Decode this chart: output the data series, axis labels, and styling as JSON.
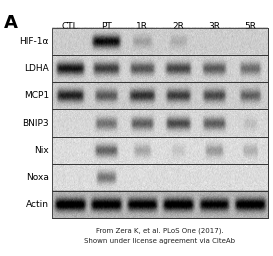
{
  "panel_label": "A",
  "col_labels": [
    "CTL",
    "PT",
    "1R",
    "2R",
    "3R",
    "5R"
  ],
  "row_labels": [
    "HIF-1α",
    "LDHA",
    "MCP1",
    "BNIP3",
    "Nix",
    "Noxa",
    "Actin"
  ],
  "caption_line1": "From Zera K, et al. PLoS One (2017).",
  "caption_line2": "Shown under license agreement via CiteAb",
  "fig_bg": "#ffffff",
  "blot_bg": 0.82,
  "row_bg": [
    0.8,
    0.82,
    0.8,
    0.84,
    0.86,
    0.86,
    0.72
  ],
  "bands": {
    "HIF-1a": [
      0.05,
      0.82,
      0.18,
      0.13,
      0.05,
      0.05
    ],
    "LDHA": [
      0.78,
      0.62,
      0.52,
      0.58,
      0.5,
      0.42
    ],
    "MCP1": [
      0.72,
      0.48,
      0.65,
      0.6,
      0.55,
      0.45
    ],
    "BNIP3": [
      0.05,
      0.42,
      0.5,
      0.58,
      0.5,
      0.1
    ],
    "Nix": [
      0.05,
      0.5,
      0.22,
      0.1,
      0.28,
      0.18
    ],
    "Noxa": [
      0.05,
      0.42,
      0.05,
      0.05,
      0.05,
      0.05
    ],
    "Actin": [
      0.88,
      0.85,
      0.82,
      0.86,
      0.8,
      0.85
    ]
  },
  "band_widths": {
    "HIF-1a": [
      0.3,
      0.75,
      0.5,
      0.45,
      0.3,
      0.25
    ],
    "LDHA": [
      0.75,
      0.7,
      0.65,
      0.68,
      0.62,
      0.55
    ],
    "MCP1": [
      0.72,
      0.6,
      0.68,
      0.65,
      0.6,
      0.55
    ],
    "BNIP3": [
      0.25,
      0.58,
      0.6,
      0.65,
      0.6,
      0.35
    ],
    "Nix": [
      0.2,
      0.6,
      0.45,
      0.35,
      0.48,
      0.4
    ],
    "Noxa": [
      0.2,
      0.52,
      0.22,
      0.22,
      0.2,
      0.2
    ],
    "Actin": [
      0.82,
      0.82,
      0.8,
      0.82,
      0.78,
      0.82
    ]
  }
}
